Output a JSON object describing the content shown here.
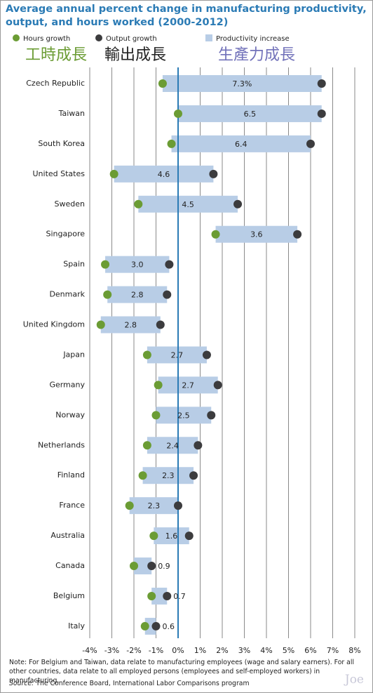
{
  "title": "Average annual percent change in manufacturing productivity, output, and hours worked (2000-2012)",
  "annotations": [
    "工時成長",
    "輸出成長",
    "生產力成長"
  ],
  "note": "Note: For Belgium and Taiwan, data relate to manufacturing employees (wage and salary earners). For all other countries, data relate to all employed persons (employees and self-employed workers) in manufacturing.",
  "source": {
    "label": "Source:",
    "text": "The Conference Board, International Labor Comparisons program"
  },
  "watermark": "Joe",
  "chart_data": {
    "type": "dumbbell",
    "categories": [
      "Czech Republic",
      "Taiwan",
      "South Korea",
      "United States",
      "Sweden",
      "Singapore",
      "Spain",
      "Denmark",
      "United Kingdom",
      "Japan",
      "Germany",
      "Norway",
      "Netherlands",
      "Finland",
      "France",
      "Australia",
      "Canada",
      "Belgium",
      "Italy"
    ],
    "series": [
      {
        "name": "Hours growth",
        "color": "#6b9c34",
        "values": [
          -0.7,
          0,
          -0.3,
          -2.9,
          -1.8,
          1.7,
          -3.3,
          -3.2,
          -3.5,
          -1.4,
          -0.9,
          -1.0,
          -1.4,
          -1.6,
          -2.2,
          -1.1,
          -2.0,
          -1.2,
          -1.5
        ]
      },
      {
        "name": "Output growth",
        "color": "#3c3c3e",
        "values": [
          6.5,
          6.5,
          6.0,
          1.6,
          2.7,
          5.4,
          -0.4,
          -0.5,
          -0.8,
          1.3,
          1.8,
          1.5,
          0.9,
          0.7,
          0,
          0.5,
          -1.2,
          -0.5,
          -1.0
        ]
      },
      {
        "name": "Productivity increase",
        "color": "#b8cde6",
        "values": [
          7.3,
          6.5,
          6.4,
          4.6,
          4.5,
          3.6,
          3.0,
          2.8,
          2.8,
          2.7,
          2.7,
          2.5,
          2.4,
          2.3,
          2.3,
          1.6,
          0.9,
          0.7,
          0.6
        ],
        "value_labels": [
          "7.3%",
          "6.5",
          "6.4",
          "4.6",
          "4.5",
          "3.6",
          "3.0",
          "2.8",
          "2.8",
          "2.7",
          "2.7",
          "2.5",
          "2.4",
          "2.3",
          "2.3",
          "1.6",
          "0.9",
          "0.7",
          "0.6"
        ]
      }
    ],
    "xlim": [
      -4,
      8
    ],
    "xticks": [
      {
        "value": -4,
        "label": "-4%"
      },
      {
        "value": -3,
        "label": "-3%"
      },
      {
        "value": -2,
        "label": "-2%"
      },
      {
        "value": -1,
        "label": "-1%"
      },
      {
        "value": 0,
        "label": "0%"
      },
      {
        "value": 1,
        "label": "1%"
      },
      {
        "value": 2,
        "label": "2%"
      },
      {
        "value": 3,
        "label": "3%"
      },
      {
        "value": 4,
        "label": "4%"
      },
      {
        "value": 5,
        "label": "5%"
      },
      {
        "value": 6,
        "label": "6%"
      },
      {
        "value": 7,
        "label": "7%"
      },
      {
        "value": 8,
        "label": "8%"
      }
    ],
    "grid": true,
    "zero_line_color": "#2b7bb5"
  }
}
